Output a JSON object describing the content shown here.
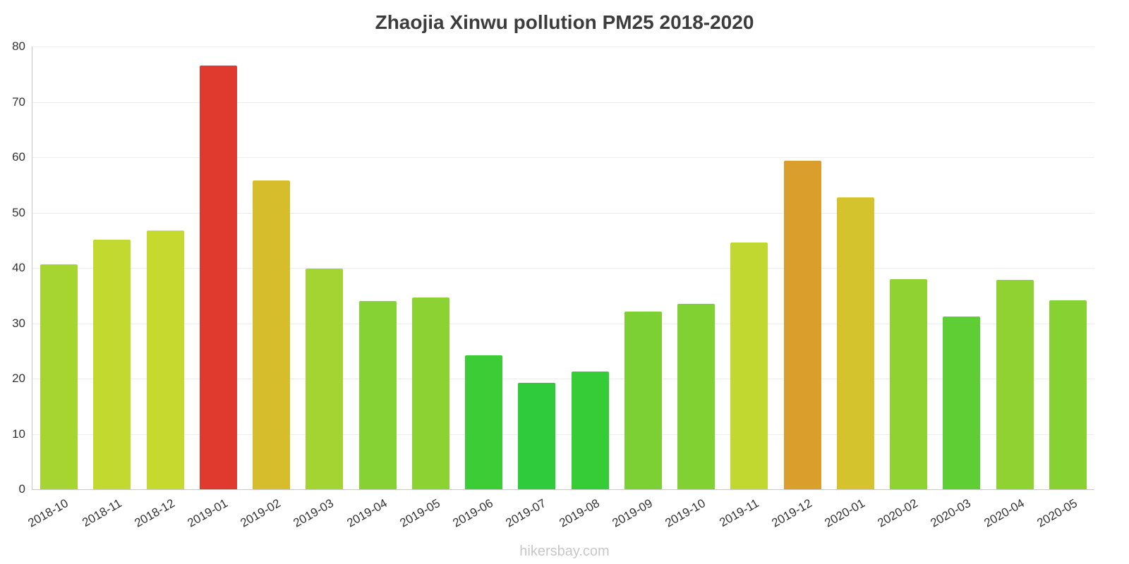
{
  "chart_data": {
    "type": "bar",
    "title": "Zhaojia Xinwu pollution PM25 2018-2020",
    "categories": [
      "2018-10",
      "2018-11",
      "2018-12",
      "2019-01",
      "2019-02",
      "2019-03",
      "2019-04",
      "2019-05",
      "2019-06",
      "2019-07",
      "2019-08",
      "2019-09",
      "2019-10",
      "2019-11",
      "2019-12",
      "2020-01",
      "2020-02",
      "2020-03",
      "2020-04",
      "2020-05"
    ],
    "values": [
      40.6,
      45.1,
      46.8,
      76.5,
      55.8,
      39.9,
      34.0,
      34.6,
      24.2,
      19.2,
      21.3,
      32.1,
      33.5,
      44.6,
      59.4,
      52.8,
      38.0,
      31.2,
      37.9,
      34.2
    ],
    "colors": [
      "#a6d431",
      "#c2d92f",
      "#c6d92f",
      "#e0392e",
      "#d6bd2b",
      "#a4d431",
      "#86d133",
      "#8cd232",
      "#3ccc35",
      "#2fcb3c",
      "#36cc38",
      "#7cd034",
      "#82d133",
      "#c0d830",
      "#d99e2b",
      "#d4c32c",
      "#90d232",
      "#5ece34",
      "#90d232",
      "#88d133"
    ],
    "ylim": [
      0,
      80
    ],
    "yticks": [
      0,
      10,
      20,
      30,
      40,
      50,
      60,
      70,
      80
    ],
    "grid": true,
    "legend": false,
    "xlabel": "",
    "ylabel": ""
  },
  "footer": "hikersbay.com"
}
